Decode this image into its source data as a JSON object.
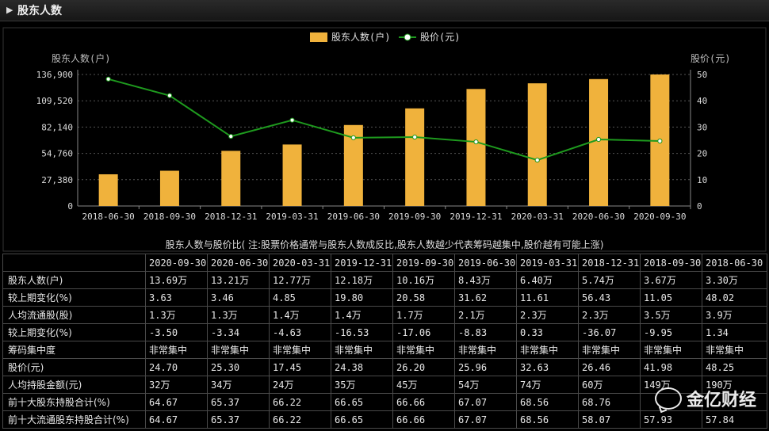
{
  "header": {
    "title": "股东人数"
  },
  "chart_data": {
    "type": "bar",
    "title": "股东人数与股价比( 注:股票价格通常与股东人数成反比,股东人数越少代表筹码越集中,股价越有可能上涨)",
    "legend": [
      "股东人数(户)",
      "股价(元)"
    ],
    "legend_position": "top",
    "ylabel_left": "股东人数(户)",
    "ylabel_right": "股价(元)",
    "categories": [
      "2018-06-30",
      "2018-09-30",
      "2018-12-31",
      "2019-03-31",
      "2019-06-30",
      "2019-09-30",
      "2019-12-31",
      "2020-03-31",
      "2020-06-30",
      "2020-09-30"
    ],
    "series": [
      {
        "name": "股东人数(户)",
        "type": "bar",
        "axis": "left",
        "color": "#F0B23C",
        "values": [
          33000,
          36700,
          57400,
          64000,
          84300,
          101600,
          121800,
          127700,
          132100,
          136900
        ]
      },
      {
        "name": "股价(元)",
        "type": "line",
        "axis": "right",
        "color": "#1E9A1E",
        "values": [
          48.25,
          41.98,
          26.46,
          32.63,
          25.96,
          26.2,
          24.38,
          17.45,
          25.3,
          24.7
        ]
      }
    ],
    "ylim_left": [
      0,
      136900
    ],
    "yticks_left": [
      "0",
      "27,380",
      "54,760",
      "82,140",
      "109,520",
      "136,900"
    ],
    "ylim_right": [
      0,
      50
    ],
    "yticks_right": [
      "0",
      "10",
      "20",
      "30",
      "40",
      "50"
    ],
    "grid": true
  },
  "table": {
    "headers": [
      "2020-09-30",
      "2020-06-30",
      "2020-03-31",
      "2019-12-31",
      "2019-09-30",
      "2019-06-30",
      "2019-03-31",
      "2018-12-31",
      "2018-09-30",
      "2018-06-30"
    ],
    "rows": [
      {
        "label": "股东人数(户)",
        "cells": [
          "13.69万",
          "13.21万",
          "12.77万",
          "12.18万",
          "10.16万",
          "8.43万",
          "6.40万",
          "5.74万",
          "3.67万",
          "3.30万"
        ]
      },
      {
        "label": "较上期变化(%)",
        "cells": [
          "3.63",
          "3.46",
          "4.85",
          "19.80",
          "20.58",
          "31.62",
          "11.61",
          "56.43",
          "11.05",
          "48.02"
        ]
      },
      {
        "label": "人均流通股(股)",
        "cells": [
          "1.3万",
          "1.3万",
          "1.4万",
          "1.4万",
          "1.7万",
          "2.1万",
          "2.3万",
          "2.3万",
          "3.5万",
          "3.9万"
        ]
      },
      {
        "label": "较上期变化(%)",
        "cells": [
          "-3.50",
          "-3.34",
          "-4.63",
          "-16.53",
          "-17.06",
          "-8.83",
          "0.33",
          "-36.07",
          "-9.95",
          "1.34"
        ]
      },
      {
        "label": "筹码集中度",
        "cells": [
          "非常集中",
          "非常集中",
          "非常集中",
          "非常集中",
          "非常集中",
          "非常集中",
          "非常集中",
          "非常集中",
          "非常集中",
          "非常集中"
        ]
      },
      {
        "label": "股价(元)",
        "cells": [
          "24.70",
          "25.30",
          "17.45",
          "24.38",
          "26.20",
          "25.96",
          "32.63",
          "26.46",
          "41.98",
          "48.25"
        ]
      },
      {
        "label": "人均持股金额(元)",
        "cells": [
          "32万",
          "34万",
          "24万",
          "35万",
          "45万",
          "54万",
          "74万",
          "60万",
          "149万",
          "190万"
        ]
      },
      {
        "label": "前十大股东持股合计(%)",
        "cells": [
          "64.67",
          "65.37",
          "66.22",
          "66.65",
          "66.66",
          "67.07",
          "68.56",
          "68.76",
          "",
          ""
        ]
      },
      {
        "label": "前十大流通股东持股合计(%)",
        "cells": [
          "64.67",
          "65.37",
          "66.22",
          "66.65",
          "66.66",
          "67.07",
          "68.56",
          "58.07",
          "57.93",
          "57.84"
        ]
      }
    ]
  },
  "watermark": {
    "text": "金亿财经",
    "icon": "wechat-icon"
  }
}
